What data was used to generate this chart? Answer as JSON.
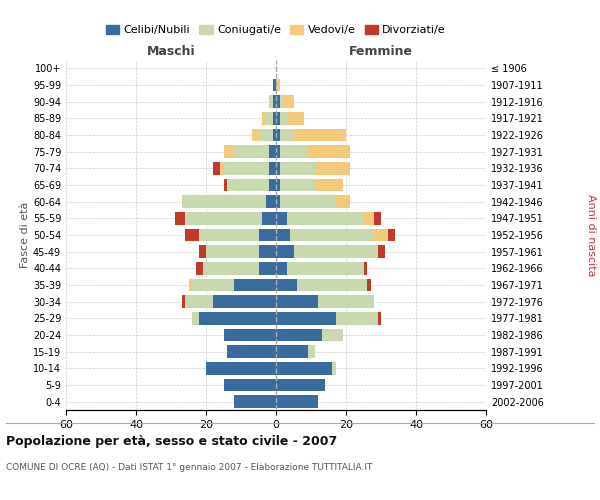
{
  "age_groups": [
    "0-4",
    "5-9",
    "10-14",
    "15-19",
    "20-24",
    "25-29",
    "30-34",
    "35-39",
    "40-44",
    "45-49",
    "50-54",
    "55-59",
    "60-64",
    "65-69",
    "70-74",
    "75-79",
    "80-84",
    "85-89",
    "90-94",
    "95-99",
    "100+"
  ],
  "birth_years": [
    "2002-2006",
    "1997-2001",
    "1992-1996",
    "1987-1991",
    "1982-1986",
    "1977-1981",
    "1972-1976",
    "1967-1971",
    "1962-1966",
    "1957-1961",
    "1952-1956",
    "1947-1951",
    "1942-1946",
    "1937-1941",
    "1932-1936",
    "1927-1931",
    "1922-1926",
    "1917-1921",
    "1912-1916",
    "1907-1911",
    "≤ 1906"
  ],
  "male": {
    "celibi": [
      12,
      15,
      20,
      14,
      15,
      22,
      18,
      12,
      5,
      5,
      5,
      4,
      3,
      2,
      2,
      2,
      1,
      1,
      1,
      1,
      0
    ],
    "coniugati": [
      0,
      0,
      0,
      0,
      0,
      2,
      8,
      12,
      16,
      15,
      17,
      22,
      24,
      12,
      13,
      10,
      4,
      2,
      1,
      0,
      0
    ],
    "vedovi": [
      0,
      0,
      0,
      0,
      0,
      0,
      0,
      1,
      0,
      0,
      0,
      0,
      0,
      0,
      1,
      3,
      2,
      1,
      0,
      0,
      0
    ],
    "divorziati": [
      0,
      0,
      0,
      0,
      0,
      0,
      1,
      0,
      2,
      2,
      4,
      3,
      0,
      1,
      2,
      0,
      0,
      0,
      0,
      0,
      0
    ]
  },
  "female": {
    "nubili": [
      12,
      14,
      16,
      9,
      13,
      17,
      12,
      6,
      3,
      5,
      4,
      3,
      1,
      1,
      1,
      1,
      1,
      1,
      1,
      0,
      0
    ],
    "coniugate": [
      0,
      0,
      1,
      2,
      6,
      12,
      16,
      20,
      22,
      24,
      24,
      22,
      16,
      10,
      10,
      8,
      4,
      2,
      1,
      0,
      0
    ],
    "vedove": [
      0,
      0,
      0,
      0,
      0,
      0,
      0,
      0,
      0,
      0,
      4,
      3,
      4,
      8,
      10,
      12,
      15,
      5,
      3,
      1,
      0
    ],
    "divorziate": [
      0,
      0,
      0,
      0,
      0,
      1,
      0,
      1,
      1,
      2,
      2,
      2,
      0,
      0,
      0,
      0,
      0,
      0,
      0,
      0,
      0
    ]
  },
  "colors": {
    "celibi": "#3a6b9e",
    "coniugati": "#c8d9b0",
    "vedovi": "#f5c97a",
    "divorziati": "#c0392b"
  },
  "xlim": 60,
  "title": "Popolazione per età, sesso e stato civile - 2007",
  "subtitle": "COMUNE DI OCRE (AQ) - Dati ISTAT 1° gennaio 2007 - Elaborazione TUTTITALIA.IT",
  "ylabel_left": "Fasce di età",
  "ylabel_right": "Anni di nascita",
  "xlabel_male": "Maschi",
  "xlabel_female": "Femmine"
}
